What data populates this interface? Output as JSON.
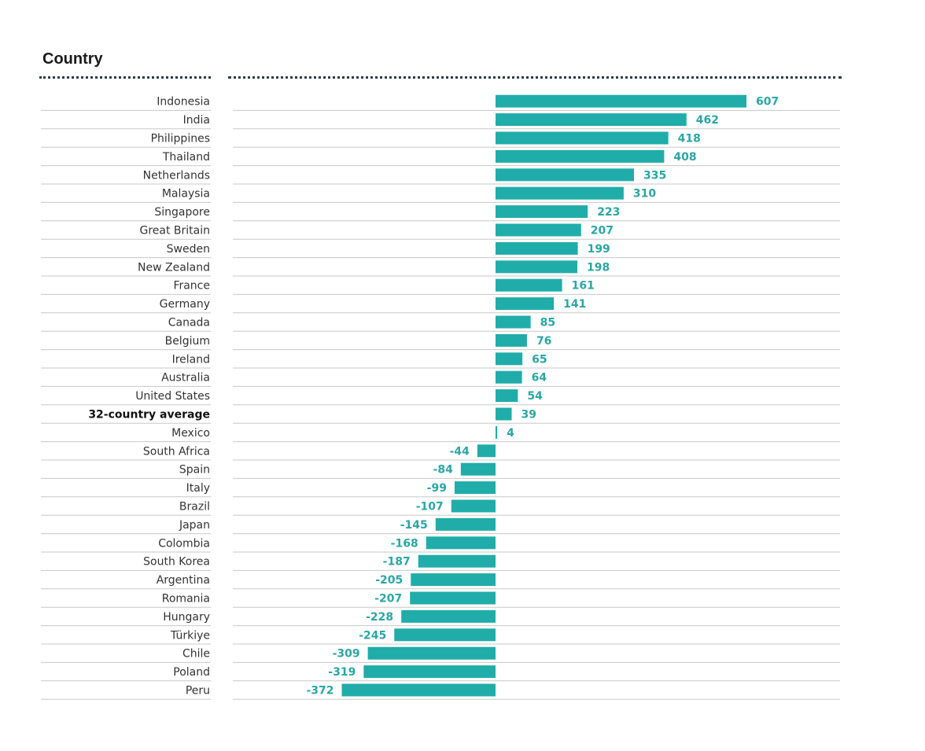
{
  "chart_data": {
    "type": "bar",
    "orientation": "horizontal",
    "title": "Country",
    "xlabel": "",
    "ylabel": "",
    "bar_color": "#20ada9",
    "label_color": "#2aa6a4",
    "categories": [
      "Indonesia",
      "India",
      "Philippines",
      "Thailand",
      "Netherlands",
      "Malaysia",
      "Singapore",
      "Great Britain",
      "Sweden",
      "New Zealand",
      "France",
      "Germany",
      "Canada",
      "Belgium",
      "Ireland",
      "Australia",
      "United States",
      "32-country average",
      "Mexico",
      "South Africa",
      "Spain",
      "Italy",
      "Brazil",
      "Japan",
      "Colombia",
      "South Korea",
      "Argentina",
      "Romania",
      "Hungary",
      "Türkiye",
      "Chile",
      "Poland",
      "Peru"
    ],
    "values": [
      607,
      462,
      418,
      408,
      335,
      310,
      223,
      207,
      199,
      198,
      161,
      141,
      85,
      76,
      65,
      64,
      54,
      39,
      4,
      -44,
      -84,
      -99,
      -107,
      -145,
      -168,
      -187,
      -205,
      -207,
      -228,
      -245,
      -309,
      -319,
      -372
    ],
    "highlight": [
      "32-country average"
    ],
    "xlim": [
      -640,
      835
    ],
    "grid": false
  }
}
